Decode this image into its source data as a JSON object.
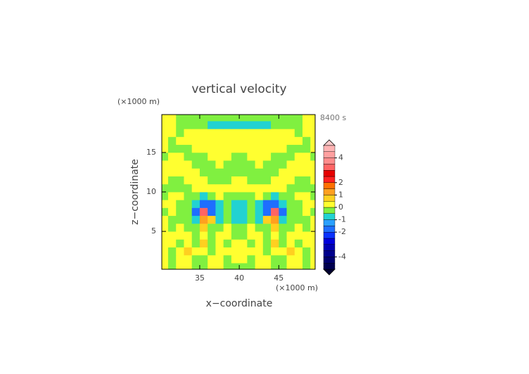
{
  "chart_data": {
    "type": "heatmap",
    "title": "vertical velocity",
    "time_label": "8400 s",
    "xlabel": "x−coordinate",
    "ylabel": "z−coordinate",
    "x_unit": "(×1000 m)",
    "y_unit": "(×1000 m)",
    "xlim": [
      30.2,
      49.6
    ],
    "ylim": [
      0.2,
      19.8
    ],
    "xticks": [
      35,
      40,
      45
    ],
    "yticks": [
      5,
      10,
      15
    ],
    "x": [
      30.5,
      31.5,
      32.5,
      33.5,
      34.5,
      35.5,
      36.5,
      37.5,
      38.5,
      39.5,
      40.5,
      41.5,
      42.5,
      43.5,
      44.5,
      45.5,
      46.5,
      47.5,
      48.5,
      49.5
    ],
    "y": [
      0.5,
      1.5,
      2.5,
      3.5,
      4.5,
      5.5,
      6.5,
      7.5,
      8.5,
      9.5,
      10.5,
      11.5,
      12.5,
      13.5,
      14.5,
      15.5,
      16.5,
      17.5,
      18.5,
      19.5
    ],
    "values": [
      [
        0.2,
        -0.2,
        0.2,
        0.2,
        -0.2,
        -0.2,
        0.2,
        0.2,
        -0.2,
        -0.2,
        -0.2,
        -0.2,
        0.2,
        0.2,
        -0.2,
        -0.2,
        0.2,
        0.2,
        -0.2,
        0.2
      ],
      [
        0.2,
        -0.2,
        0.2,
        0.2,
        -0.2,
        -0.2,
        0.2,
        0.2,
        -0.2,
        0.2,
        0.2,
        -0.2,
        0.2,
        0.2,
        -0.2,
        -0.2,
        0.2,
        0.2,
        -0.2,
        0.2
      ],
      [
        0.2,
        -0.2,
        0.2,
        0.7,
        0.2,
        0.2,
        -0.2,
        0.2,
        0.2,
        0.2,
        0.2,
        0.2,
        0.2,
        -0.2,
        0.2,
        0.2,
        0.7,
        0.2,
        -0.2,
        0.2
      ],
      [
        0.2,
        0.2,
        -0.2,
        0.2,
        -0.2,
        0.7,
        -0.2,
        0.2,
        -0.2,
        0.2,
        0.2,
        -0.2,
        0.2,
        -0.2,
        0.7,
        -0.2,
        0.2,
        -0.2,
        0.2,
        0.2
      ],
      [
        0.2,
        0.2,
        0.2,
        0.2,
        -0.2,
        0.2,
        -0.2,
        0.2,
        0.2,
        -0.2,
        -0.2,
        0.2,
        0.2,
        -0.2,
        0.2,
        -0.2,
        0.2,
        0.2,
        0.2,
        0.2
      ],
      [
        0.2,
        -0.2,
        0.2,
        -0.2,
        -0.2,
        0.7,
        -0.2,
        -0.2,
        0.2,
        -0.2,
        -0.2,
        0.2,
        -0.2,
        -0.2,
        0.7,
        -0.2,
        -0.2,
        0.2,
        -0.2,
        0.2
      ],
      [
        0.2,
        -0.2,
        -0.2,
        -0.2,
        -0.7,
        1.2,
        0.7,
        -0.7,
        -0.2,
        -0.7,
        -0.7,
        -0.2,
        -0.7,
        0.7,
        1.2,
        -0.7,
        -0.2,
        -0.2,
        -0.2,
        0.2
      ],
      [
        -0.2,
        0.2,
        -0.2,
        -0.2,
        -1.7,
        3,
        -1.7,
        -0.7,
        -0.2,
        -0.7,
        -0.7,
        -0.2,
        -0.7,
        -1.7,
        3,
        -1.7,
        -0.2,
        -0.2,
        0.2,
        -0.2
      ],
      [
        0.2,
        0.2,
        -0.2,
        -0.2,
        -0.7,
        -1.7,
        -1.7,
        -0.7,
        -0.2,
        -0.7,
        -0.7,
        -0.2,
        -0.7,
        -1.7,
        -1.7,
        -0.7,
        -0.2,
        -0.2,
        0.2,
        0.2
      ],
      [
        -0.2,
        0.2,
        0.2,
        -0.2,
        -0.2,
        -0.7,
        -0.2,
        0.2,
        -0.2,
        -0.2,
        -0.2,
        -0.2,
        0.2,
        -0.2,
        -0.7,
        -0.2,
        -0.2,
        0.2,
        0.2,
        -0.2
      ],
      [
        -0.2,
        -0.2,
        -0.2,
        -0.2,
        0.2,
        0.2,
        0.2,
        0.2,
        0.2,
        0.2,
        0.2,
        0.2,
        0.2,
        0.2,
        0.2,
        0.2,
        -0.2,
        -0.2,
        -0.2,
        -0.2
      ],
      [
        0.2,
        -0.2,
        -0.2,
        0.2,
        0.2,
        0.2,
        -0.2,
        -0.2,
        -0.2,
        0.2,
        0.2,
        -0.2,
        -0.2,
        -0.2,
        0.2,
        0.2,
        0.2,
        -0.2,
        -0.2,
        0.2
      ],
      [
        0.2,
        0.2,
        0.2,
        0.2,
        0.2,
        -0.2,
        -0.2,
        -0.2,
        -0.2,
        -0.2,
        -0.2,
        -0.2,
        -0.2,
        -0.2,
        -0.2,
        0.2,
        0.2,
        0.2,
        0.2,
        0.2
      ],
      [
        0.2,
        0.2,
        0.2,
        0.2,
        -0.2,
        -0.2,
        -0.2,
        0.2,
        -0.2,
        -0.2,
        -0.2,
        -0.2,
        0.2,
        -0.2,
        -0.2,
        -0.2,
        0.2,
        0.2,
        0.2,
        0.2
      ],
      [
        -0.2,
        0.2,
        0.2,
        -0.2,
        -0.2,
        -0.2,
        0.2,
        0.2,
        0.2,
        -0.2,
        -0.2,
        0.2,
        0.2,
        0.2,
        -0.2,
        -0.2,
        -0.2,
        0.2,
        0.2,
        -0.2
      ],
      [
        0.2,
        -0.2,
        -0.2,
        -0.2,
        0.2,
        0.2,
        0.2,
        0.2,
        0.2,
        0.2,
        0.2,
        0.2,
        0.2,
        0.2,
        0.2,
        0.2,
        -0.2,
        -0.2,
        -0.2,
        0.2
      ],
      [
        0.2,
        -0.2,
        0.2,
        0.2,
        0.2,
        0.2,
        0.2,
        0.2,
        0.2,
        0.2,
        0.2,
        0.2,
        0.2,
        0.2,
        0.2,
        0.2,
        0.2,
        0.2,
        -0.2,
        0.2
      ],
      [
        0.2,
        0.2,
        -0.2,
        0.2,
        0.2,
        0.2,
        0.2,
        0.2,
        0.2,
        0.2,
        0.2,
        0.2,
        0.2,
        0.2,
        0.2,
        0.2,
        0.2,
        -0.2,
        0.2,
        0.2
      ],
      [
        0.2,
        0.2,
        -0.2,
        -0.2,
        -0.2,
        -0.2,
        -0.7,
        -0.7,
        -0.7,
        -0.7,
        -0.7,
        -0.7,
        -0.7,
        -0.7,
        -0.2,
        -0.2,
        -0.2,
        -0.2,
        0.2,
        0.2
      ],
      [
        0.2,
        0.2,
        -0.2,
        -0.2,
        -0.2,
        -0.2,
        -0.2,
        -0.2,
        -0.2,
        -0.2,
        -0.2,
        -0.2,
        -0.2,
        -0.2,
        -0.2,
        -0.2,
        -0.2,
        -0.2,
        0.2,
        0.2
      ]
    ],
    "colorbar": {
      "levels": [
        -5,
        -4.5,
        -4,
        -3.5,
        -3,
        -2.5,
        -2,
        -1.5,
        -1,
        -0.5,
        0,
        0.5,
        1,
        1.5,
        2,
        2.5,
        3,
        3.5,
        4,
        4.5,
        5
      ],
      "colors": [
        "#000050",
        "#00006e",
        "#00008c",
        "#0000b4",
        "#0000dc",
        "#0a32ff",
        "#1e6eff",
        "#2aa0ff",
        "#22d2d2",
        "#80f040",
        "#ffff30",
        "#ffd020",
        "#ffa020",
        "#ff7000",
        "#ff2020",
        "#e60000",
        "#ff6464",
        "#ff8c8c",
        "#ffa0a0",
        "#ffb4b4"
      ],
      "ticks": [
        -4,
        -2,
        -1,
        0,
        1,
        2,
        4
      ]
    }
  }
}
